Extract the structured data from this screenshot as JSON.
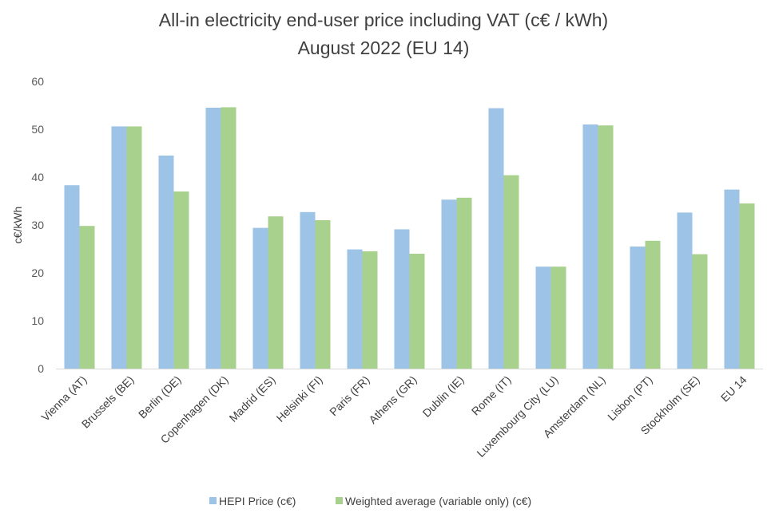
{
  "chart_data": {
    "type": "bar",
    "title": "All-in electricity end-user price including VAT (c€ / kWh)",
    "subtitle": "August 2022 (EU 14)",
    "xlabel": "",
    "ylabel": "c€/kWh",
    "ylim": [
      0,
      60
    ],
    "yticks": [
      0,
      10,
      20,
      30,
      40,
      50,
      60
    ],
    "grid": false,
    "legend_position": "bottom",
    "categories": [
      "Vienna (AT)",
      "Brussels (BE)",
      "Berlin (DE)",
      "Copenhagen (DK)",
      "Madrid (ES)",
      "Helsinki (FI)",
      "Paris (FR)",
      "Athens (GR)",
      "Dublin (IE)",
      "Rome (IT)",
      "Luxembourg City (LU)",
      "Amsterdam (NL)",
      "Lisbon (PT)",
      "Stockholm (SE)",
      "EU 14"
    ],
    "series": [
      {
        "name": "HEPI Price (c€)",
        "color": "#9DC3E6",
        "values": [
          38.3,
          50.6,
          44.5,
          54.5,
          29.4,
          32.7,
          24.9,
          29.1,
          35.3,
          54.4,
          21.3,
          51.0,
          25.5,
          32.6,
          37.4
        ]
      },
      {
        "name": "Weighted average (variable only) (c€)",
        "color": "#A9D18E",
        "values": [
          29.8,
          50.6,
          37.0,
          54.6,
          31.8,
          31.0,
          24.5,
          24.0,
          35.7,
          40.4,
          21.3,
          50.8,
          26.7,
          23.9,
          34.5
        ]
      }
    ]
  }
}
